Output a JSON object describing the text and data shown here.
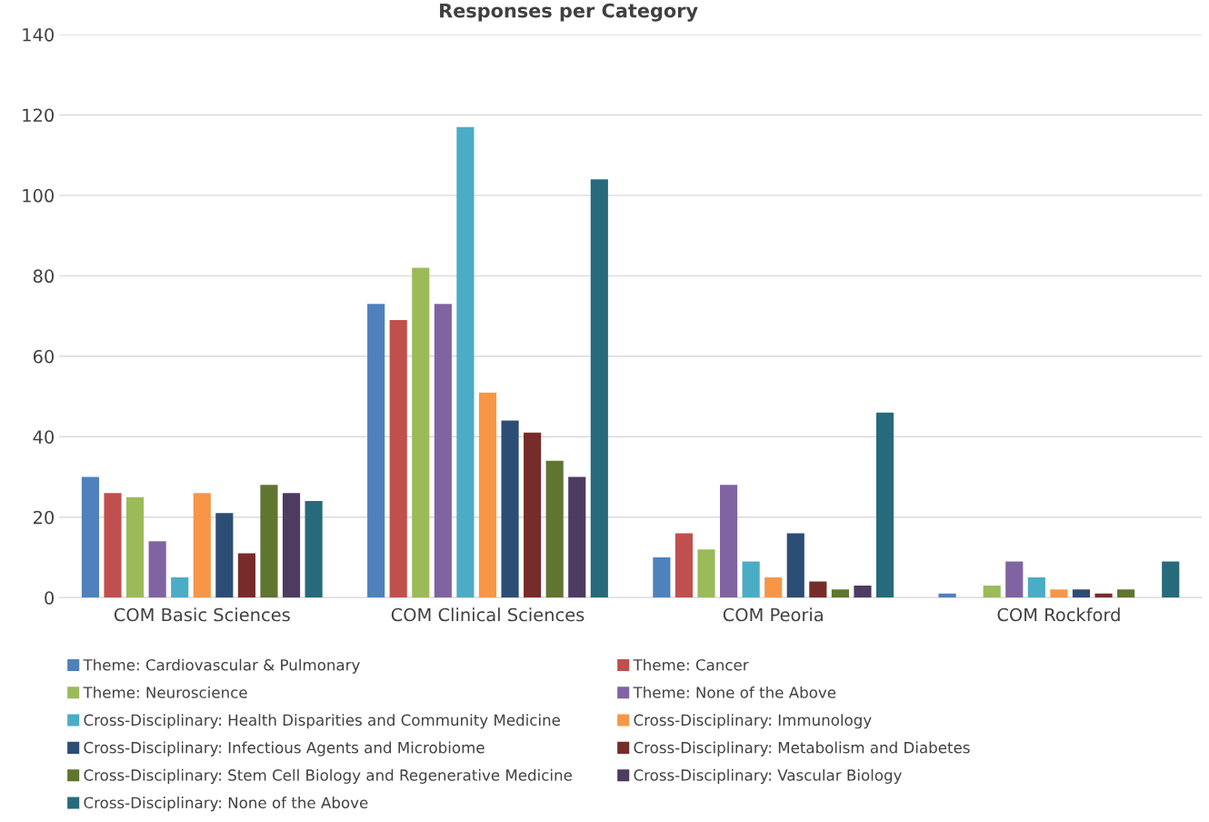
{
  "chart_data": {
    "type": "bar",
    "title": "Responses per Category",
    "categories": [
      "COM Basic Sciences",
      "COM Clinical Sciences",
      "COM Peoria",
      "COM Rockford"
    ],
    "series": [
      {
        "name": "Theme: Cardiovascular & Pulmonary",
        "color": "#4f81bd",
        "values": [
          30,
          73,
          10,
          1
        ]
      },
      {
        "name": "Theme: Cancer",
        "color": "#c0504d",
        "values": [
          26,
          69,
          16,
          0
        ]
      },
      {
        "name": "Theme: Neuroscience",
        "color": "#9bbb59",
        "values": [
          25,
          82,
          12,
          3
        ]
      },
      {
        "name": "Theme: None of the Above",
        "color": "#8064a2",
        "values": [
          14,
          73,
          28,
          9
        ]
      },
      {
        "name": "Cross-Disciplinary: Health Disparities and Community Medicine",
        "color": "#4bacc6",
        "values": [
          5,
          117,
          9,
          5
        ]
      },
      {
        "name": "Cross-Disciplinary: Immunology",
        "color": "#f79646",
        "values": [
          26,
          51,
          5,
          2
        ]
      },
      {
        "name": "Cross-Disciplinary: Infectious Agents and Microbiome",
        "color": "#2c4d75",
        "values": [
          21,
          44,
          16,
          2
        ]
      },
      {
        "name": "Cross-Disciplinary: Metabolism and Diabetes",
        "color": "#772c2a",
        "values": [
          11,
          41,
          4,
          1
        ]
      },
      {
        "name": "Cross-Disciplinary: Stem Cell Biology and Regenerative Medicine",
        "color": "#5f7530",
        "values": [
          28,
          34,
          2,
          2
        ]
      },
      {
        "name": "Cross-Disciplinary: Vascular Biology",
        "color": "#4d3b62",
        "values": [
          26,
          30,
          3,
          0
        ]
      },
      {
        "name": "Cross-Disciplinary: None of the Above",
        "color": "#276a7c",
        "values": [
          24,
          104,
          46,
          9
        ]
      }
    ],
    "ylim": [
      0,
      140
    ],
    "yticks": [
      0,
      20,
      40,
      60,
      80,
      100,
      120,
      140
    ],
    "grid": "y",
    "legend": "bottom"
  }
}
